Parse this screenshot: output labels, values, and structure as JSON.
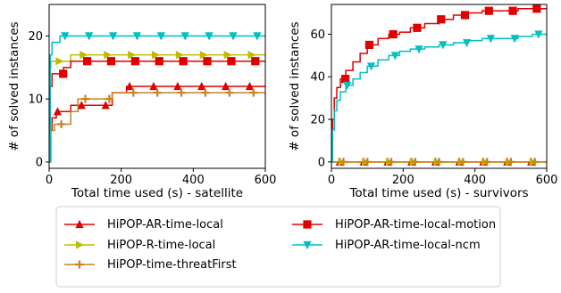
{
  "chart_data": [
    {
      "type": "line",
      "xlabel": "Total time used (s) - satellite",
      "ylabel": "# of solved instances",
      "xlim": [
        0,
        600
      ],
      "ylim": [
        -1,
        25
      ],
      "xticks": [
        0,
        200,
        400,
        600
      ],
      "yticks": [
        0,
        10,
        20
      ],
      "grid": false,
      "series": [
        {
          "name": "HiPOP-AR-time-local",
          "color": "#e00000",
          "marker": "triangle-up",
          "x": [
            0,
            3,
            8,
            20,
            35,
            60,
            100,
            150,
            175,
            200,
            215,
            300,
            400,
            500,
            600
          ],
          "y": [
            0,
            5,
            7,
            8,
            8,
            9,
            9,
            9,
            11,
            11,
            12,
            12,
            12,
            12,
            12
          ]
        },
        {
          "name": "HiPOP-R-time-local",
          "color": "#bcbc00",
          "marker": "triangle-right",
          "x": [
            0,
            2,
            5,
            10,
            20,
            40,
            60,
            100,
            150,
            300,
            450,
            600
          ],
          "y": [
            0,
            15,
            16,
            16,
            16,
            16,
            17,
            17,
            17,
            17,
            17,
            17
          ]
        },
        {
          "name": "HiPOP-time-threatFirst",
          "color": "#c8821e",
          "marker": "plus",
          "x": [
            0,
            5,
            15,
            30,
            60,
            80,
            100,
            150,
            175,
            250,
            350,
            450,
            600
          ],
          "y": [
            0,
            5,
            6,
            6,
            8,
            10,
            10,
            10,
            11,
            11,
            11,
            11,
            11
          ]
        },
        {
          "name": "HiPOP-AR-time-local-motion",
          "color": "#e00000",
          "marker": "square",
          "x": [
            0,
            3,
            8,
            20,
            40,
            60,
            100,
            200,
            300,
            400,
            500,
            600
          ],
          "y": [
            0,
            12,
            14,
            14,
            15,
            16,
            16,
            16,
            16,
            16,
            16,
            16
          ]
        },
        {
          "name": "HiPOP-AR-time-local-ncm",
          "color": "#00c0c0",
          "marker": "triangle-down",
          "x": [
            0,
            3,
            8,
            15,
            30,
            60,
            100,
            150,
            250,
            350,
            450,
            600
          ],
          "y": [
            0,
            17,
            19,
            19,
            20,
            20,
            20,
            20,
            20,
            20,
            20,
            20
          ]
        }
      ]
    },
    {
      "type": "line",
      "xlabel": "Total time used (s) - survivors",
      "ylabel": "# of solved instances",
      "xlim": [
        0,
        600
      ],
      "ylim": [
        -3,
        74
      ],
      "xticks": [
        0,
        200,
        400,
        600
      ],
      "yticks": [
        0,
        20,
        40,
        60
      ],
      "grid": false,
      "series": [
        {
          "name": "HiPOP-AR-time-local",
          "color": "#e00000",
          "marker": "triangle-up",
          "x": [
            0,
            75,
            150,
            225,
            300,
            375,
            450,
            525,
            600
          ],
          "y": [
            0,
            0,
            0,
            0,
            0,
            0,
            0,
            0,
            0
          ]
        },
        {
          "name": "HiPOP-R-time-local",
          "color": "#bcbc00",
          "marker": "triangle-right",
          "x": [
            0,
            75,
            150,
            225,
            300,
            375,
            450,
            525,
            600
          ],
          "y": [
            0,
            0,
            0,
            0,
            0,
            0,
            0,
            0,
            0
          ]
        },
        {
          "name": "HiPOP-time-threatFirst",
          "color": "#c8821e",
          "marker": "plus",
          "x": [
            0,
            75,
            150,
            225,
            300,
            375,
            450,
            525,
            600
          ],
          "y": [
            0,
            0,
            0,
            0,
            0,
            0,
            0,
            0,
            0
          ]
        },
        {
          "name": "HiPOP-AR-time-local-motion",
          "color": "#e00000",
          "marker": "square",
          "x": [
            0,
            3,
            8,
            15,
            25,
            40,
            60,
            80,
            100,
            130,
            160,
            190,
            220,
            260,
            300,
            340,
            380,
            420,
            470,
            520,
            580,
            600
          ],
          "y": [
            0,
            20,
            30,
            35,
            39,
            43,
            47,
            51,
            55,
            58,
            60,
            61,
            63,
            65,
            67,
            69,
            70,
            71,
            71,
            72,
            72,
            72
          ]
        },
        {
          "name": "HiPOP-AR-time-local-ncm",
          "color": "#00c0c0",
          "marker": "triangle-down",
          "x": [
            0,
            3,
            8,
            15,
            25,
            40,
            60,
            80,
            100,
            130,
            160,
            190,
            220,
            260,
            300,
            340,
            380,
            420,
            470,
            520,
            560,
            600
          ],
          "y": [
            0,
            15,
            24,
            29,
            33,
            36,
            39,
            42,
            45,
            48,
            50,
            52,
            53,
            54,
            55,
            56,
            57,
            58,
            58,
            59,
            60,
            60
          ]
        }
      ]
    }
  ],
  "legend": {
    "placement": "bottom",
    "items": [
      {
        "label": "HiPOP-AR-time-local",
        "series": 0
      },
      {
        "label": "HiPOP-AR-time-local-motion",
        "series": 3
      },
      {
        "label": "HiPOP-R-time-local",
        "series": 1
      },
      {
        "label": "HiPOP-AR-time-local-ncm",
        "series": 4
      },
      {
        "label": "HiPOP-time-threatFirst",
        "series": 2
      }
    ]
  }
}
